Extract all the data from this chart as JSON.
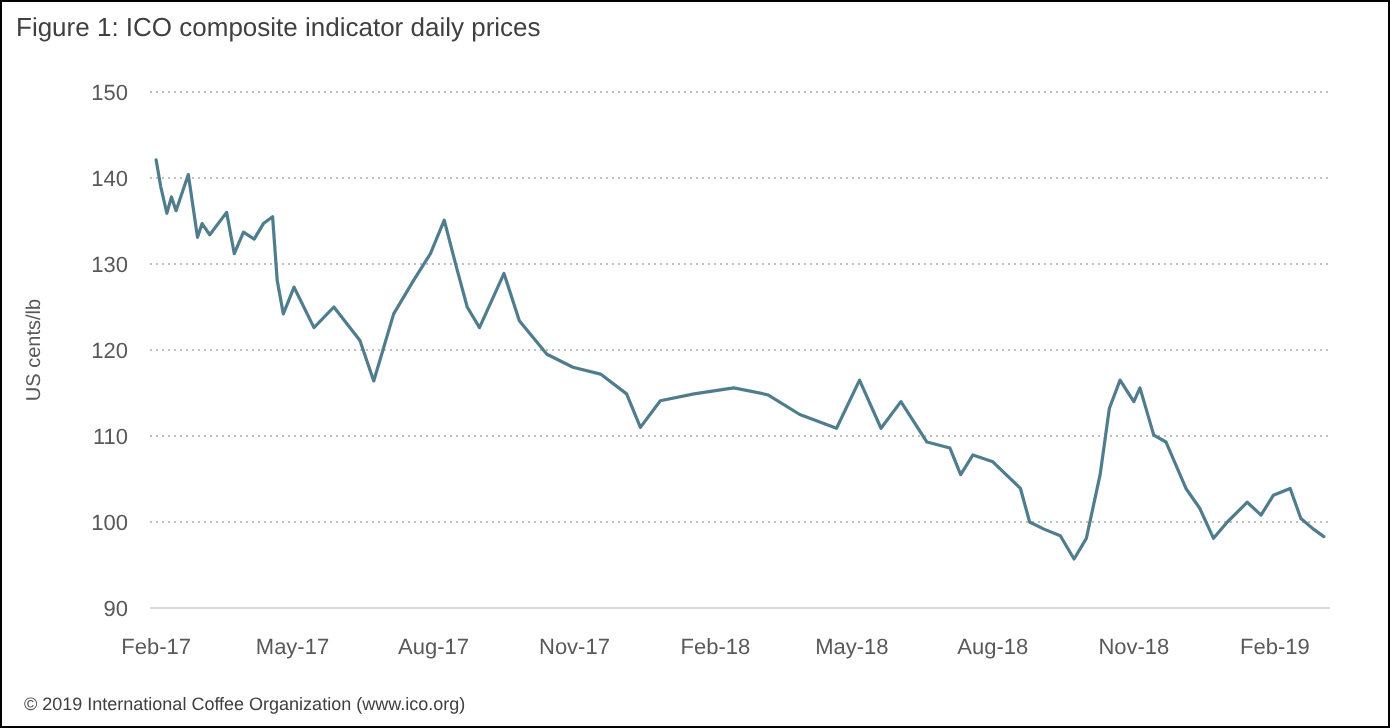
{
  "chart_data": {
    "type": "line",
    "title": "Figure 1: ICO composite indicator daily prices",
    "ylabel": "US cents/lb",
    "annotations": [
      "© 2019 International Coffee Organization (www.ico.org)"
    ],
    "xlim": [
      "2017-01-28",
      "2019-03-09"
    ],
    "xticks": [
      {
        "value": "2017-02-01",
        "label": "Feb-17"
      },
      {
        "value": "2017-05-01",
        "label": "May-17"
      },
      {
        "value": "2017-08-01",
        "label": "Aug-17"
      },
      {
        "value": "2017-11-01",
        "label": "Nov-17"
      },
      {
        "value": "2018-02-01",
        "label": "Feb-18"
      },
      {
        "value": "2018-05-01",
        "label": "May-18"
      },
      {
        "value": "2018-08-01",
        "label": "Aug-18"
      },
      {
        "value": "2018-11-01",
        "label": "Nov-18"
      },
      {
        "value": "2019-02-01",
        "label": "Feb-19"
      }
    ],
    "ylim": [
      90,
      150
    ],
    "yticks": [
      90,
      100,
      110,
      120,
      130,
      140,
      150
    ],
    "grid": "y",
    "marker": "none",
    "line_style": "solid",
    "series": [
      {
        "color": "#4f7d8e",
        "x": [
          "2017-02-01",
          "2017-02-04",
          "2017-02-08",
          "2017-02-11",
          "2017-02-14",
          "2017-02-22",
          "2017-02-28",
          "2017-03-03",
          "2017-03-08",
          "2017-03-19",
          "2017-03-24",
          "2017-03-30",
          "2017-04-06",
          "2017-04-12",
          "2017-04-18",
          "2017-04-21",
          "2017-04-25",
          "2017-05-02",
          "2017-05-15",
          "2017-05-28",
          "2017-06-14",
          "2017-06-23",
          "2017-07-06",
          "2017-07-19",
          "2017-07-30",
          "2017-08-08",
          "2017-08-16",
          "2017-08-23",
          "2017-08-31",
          "2017-09-16",
          "2017-09-26",
          "2017-10-14",
          "2017-10-31",
          "2017-11-18",
          "2017-12-05",
          "2017-12-14",
          "2017-12-27",
          "2018-01-18",
          "2018-02-13",
          "2018-03-07",
          "2018-03-28",
          "2018-04-21",
          "2018-05-06",
          "2018-05-20",
          "2018-06-02",
          "2018-06-19",
          "2018-07-04",
          "2018-07-11",
          "2018-07-19",
          "2018-08-01",
          "2018-08-19",
          "2018-08-25",
          "2018-09-03",
          "2018-09-14",
          "2018-09-23",
          "2018-10-01",
          "2018-10-10",
          "2018-10-16",
          "2018-10-23",
          "2018-11-01",
          "2018-11-05",
          "2018-11-14",
          "2018-11-22",
          "2018-12-05",
          "2018-12-14",
          "2018-12-23",
          "2019-01-01",
          "2019-01-14",
          "2019-01-23",
          "2019-01-31",
          "2019-02-11",
          "2019-02-18",
          "2019-02-26",
          "2019-03-05"
        ],
        "values": [
          142.1,
          139,
          135.9,
          137.8,
          136.2,
          140.4,
          133.1,
          134.7,
          133.4,
          136,
          131.2,
          133.7,
          132.9,
          134.7,
          135.5,
          128.1,
          124.2,
          127.3,
          122.6,
          125,
          121.1,
          116.4,
          124.2,
          128.1,
          131.2,
          135.1,
          129.6,
          125,
          122.6,
          128.9,
          123.4,
          119.5,
          118,
          117.2,
          114.9,
          111,
          114.1,
          114.9,
          115.6,
          114.8,
          112.5,
          110.9,
          116.5,
          110.9,
          114,
          109.3,
          108.6,
          105.5,
          107.8,
          107,
          103.9,
          100,
          99.2,
          98.4,
          95.7,
          98.1,
          105.5,
          113.2,
          116.5,
          114,
          115.6,
          110.1,
          109.3,
          103.9,
          101.6,
          98.1,
          100,
          102.3,
          100.8,
          103.1,
          103.9,
          100.4,
          99.2,
          98.3
        ]
      }
    ]
  }
}
